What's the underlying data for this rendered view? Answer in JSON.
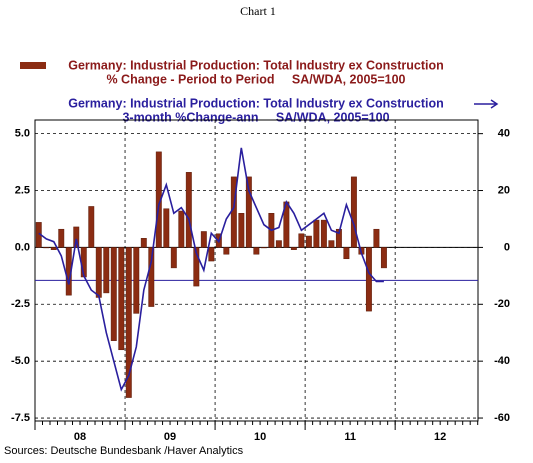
{
  "chart_data": {
    "type": "bar_line",
    "title": "Chart 1",
    "legend_bar": [
      "Germany: Industrial Production: Total Industry ex Construction",
      "% Change - Period to Period     SA/WDA, 2005=100"
    ],
    "legend_line": [
      "Germany: Industrial Production: Total Industry ex Construction",
      "3-month %Change-ann     SA/WDA, 2005=100"
    ],
    "source": "Sources:  Deutsche Bundesbank /Haver Analytics",
    "categories": [
      null,
      null,
      null,
      null,
      null,
      null,
      null,
      null,
      null,
      null,
      null,
      null,
      null,
      null,
      null,
      null,
      null,
      null,
      null,
      null,
      null,
      null,
      null,
      null,
      null,
      null,
      null,
      null,
      null,
      null,
      null,
      null,
      null,
      null,
      null,
      null,
      null,
      null,
      null,
      null,
      null,
      null,
      null,
      null,
      null,
      null,
      null
    ],
    "series": [
      {
        "name": "Germany: Industrial Production: Total Industry ex Construction",
        "color": "#8b2c12",
        "axis": "y",
        "values": [
          1.1,
          0.0,
          -0.1,
          0.8,
          -2.1,
          0.9,
          -1.3,
          1.8,
          -2.2,
          -2.0,
          -4.1,
          -4.5,
          -6.6,
          -2.9,
          0.4,
          -2.6,
          4.2,
          1.7,
          -0.9,
          1.6,
          3.3,
          -1.7,
          0.7,
          -0.6,
          0.6,
          -0.3,
          3.1,
          1.5,
          3.1,
          -0.3,
          0.0,
          1.5,
          0.3,
          2.0,
          -0.1,
          0.6,
          0.5,
          1.2,
          1.2,
          0.3,
          0.8,
          -0.5,
          3.1,
          -0.3,
          -2.8,
          0.8,
          -0.9
        ]
      },
      {
        "name": "Germany: Industrial Production: Total Industry ex Construction",
        "color": "#2a1f9e",
        "axis": "y2",
        "values": [
          5,
          3,
          2,
          -3,
          -13,
          3,
          -10,
          -15,
          -17,
          -30,
          -40,
          -50,
          -45,
          -35,
          -15,
          -5,
          15,
          22,
          12,
          14,
          10,
          -2,
          -8,
          5,
          2,
          10,
          14,
          35,
          20,
          14,
          8,
          6,
          7,
          16,
          12,
          6,
          8,
          10,
          12,
          6,
          5,
          15,
          8,
          -2,
          -9,
          -12,
          -12
        ]
      }
    ],
    "y2_reference": -11.6,
    "xlim": [
      2008,
      2012.92
    ],
    "xticks": [
      2008,
      2009,
      2010,
      2011,
      2012
    ],
    "year_labels": [
      {
        "value": 2008.5,
        "label": "08"
      },
      {
        "value": 2009.5,
        "label": "09"
      },
      {
        "value": 2010.5,
        "label": "10"
      },
      {
        "value": 2011.5,
        "label": "11"
      },
      {
        "value": 2012.5,
        "label": "12"
      }
    ],
    "ylim": [
      -7.63,
      5.6
    ],
    "yticks": [
      {
        "value": 5,
        "label": "5.0"
      },
      {
        "value": 2.5,
        "label": "2.5"
      },
      {
        "value": 0,
        "label": "0.0"
      },
      {
        "value": -2.5,
        "label": "-2.5"
      },
      {
        "value": -5,
        "label": "-5.0"
      },
      {
        "value": -7.5,
        "label": "-7.5"
      }
    ],
    "y2lim": [
      -61.04,
      44.8
    ],
    "y2ticks": [
      40,
      20,
      0,
      -20,
      -40,
      -60
    ],
    "grid": true
  }
}
